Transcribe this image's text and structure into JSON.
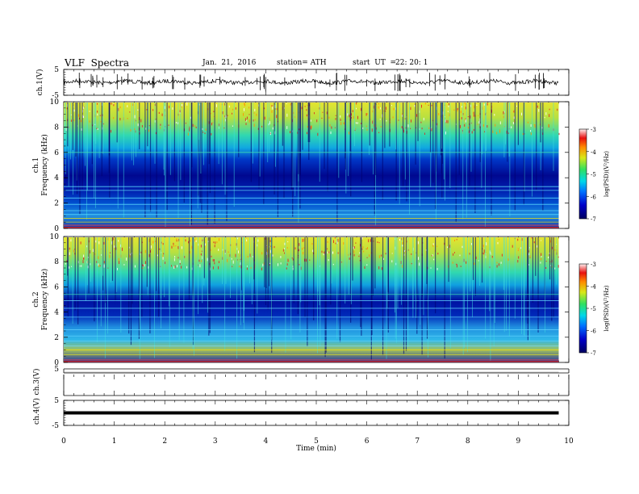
{
  "header": {
    "title": "VLF  Spectra",
    "date": "Jan.  21,  2016",
    "station": "station= ATH",
    "start_label": "start  UT  =",
    "start_time": "22: 20: 1"
  },
  "chart_data": [
    {
      "type": "line",
      "panel": "ch1-waveform",
      "ylabel": "ch.1(V)",
      "ylim": [
        -5,
        5
      ],
      "yticks": [
        "5",
        "-5"
      ],
      "xlim": [
        0,
        10
      ],
      "description_values": {
        "baseline": 0,
        "typical_amplitude": 1.0
      }
    },
    {
      "type": "heatmap",
      "panel": "ch1-spectrogram",
      "ylabel_lines": [
        "ch.1",
        "Frequency  (kHz)"
      ],
      "ylim": [
        0,
        10
      ],
      "yticks": [
        "0",
        "2",
        "4",
        "6",
        "8",
        "10"
      ],
      "xlim": [
        0,
        10
      ],
      "colorbar": {
        "label": "log(PSD)(V²/Hz)",
        "range": [
          -7,
          -3
        ],
        "ticks": [
          "-3",
          "-4",
          "-5",
          "-6",
          "-7"
        ]
      }
    },
    {
      "type": "heatmap",
      "panel": "ch2-spectrogram",
      "ylabel_lines": [
        "ch.2",
        "Frequency  (kHz)"
      ],
      "ylim": [
        0,
        10
      ],
      "yticks": [
        "0",
        "2",
        "4",
        "6",
        "8",
        "10"
      ],
      "xlim": [
        0,
        10
      ],
      "colorbar": {
        "label": "log(PSD)(V²/Hz)",
        "range": [
          -7,
          -3
        ],
        "ticks": [
          "-3",
          "-4",
          "-5",
          "-6",
          "-7"
        ]
      }
    },
    {
      "type": "line",
      "panel": "ch3-waveform",
      "ylabel": "ch.3(V)",
      "ylim": [
        -5,
        5
      ],
      "yticks": [
        "5"
      ],
      "xlim": [
        0,
        10
      ]
    },
    {
      "type": "line",
      "panel": "ch4-waveform",
      "ylabel": "ch.4(V)",
      "ylim": [
        -5,
        5
      ],
      "yticks": [
        "5",
        "-5"
      ],
      "xlim": [
        0,
        10
      ]
    }
  ],
  "xaxis": {
    "label": "Time  (min)",
    "ticks": [
      "0",
      "1",
      "2",
      "3",
      "4",
      "5",
      "6",
      "7",
      "8",
      "9",
      "10"
    ]
  }
}
